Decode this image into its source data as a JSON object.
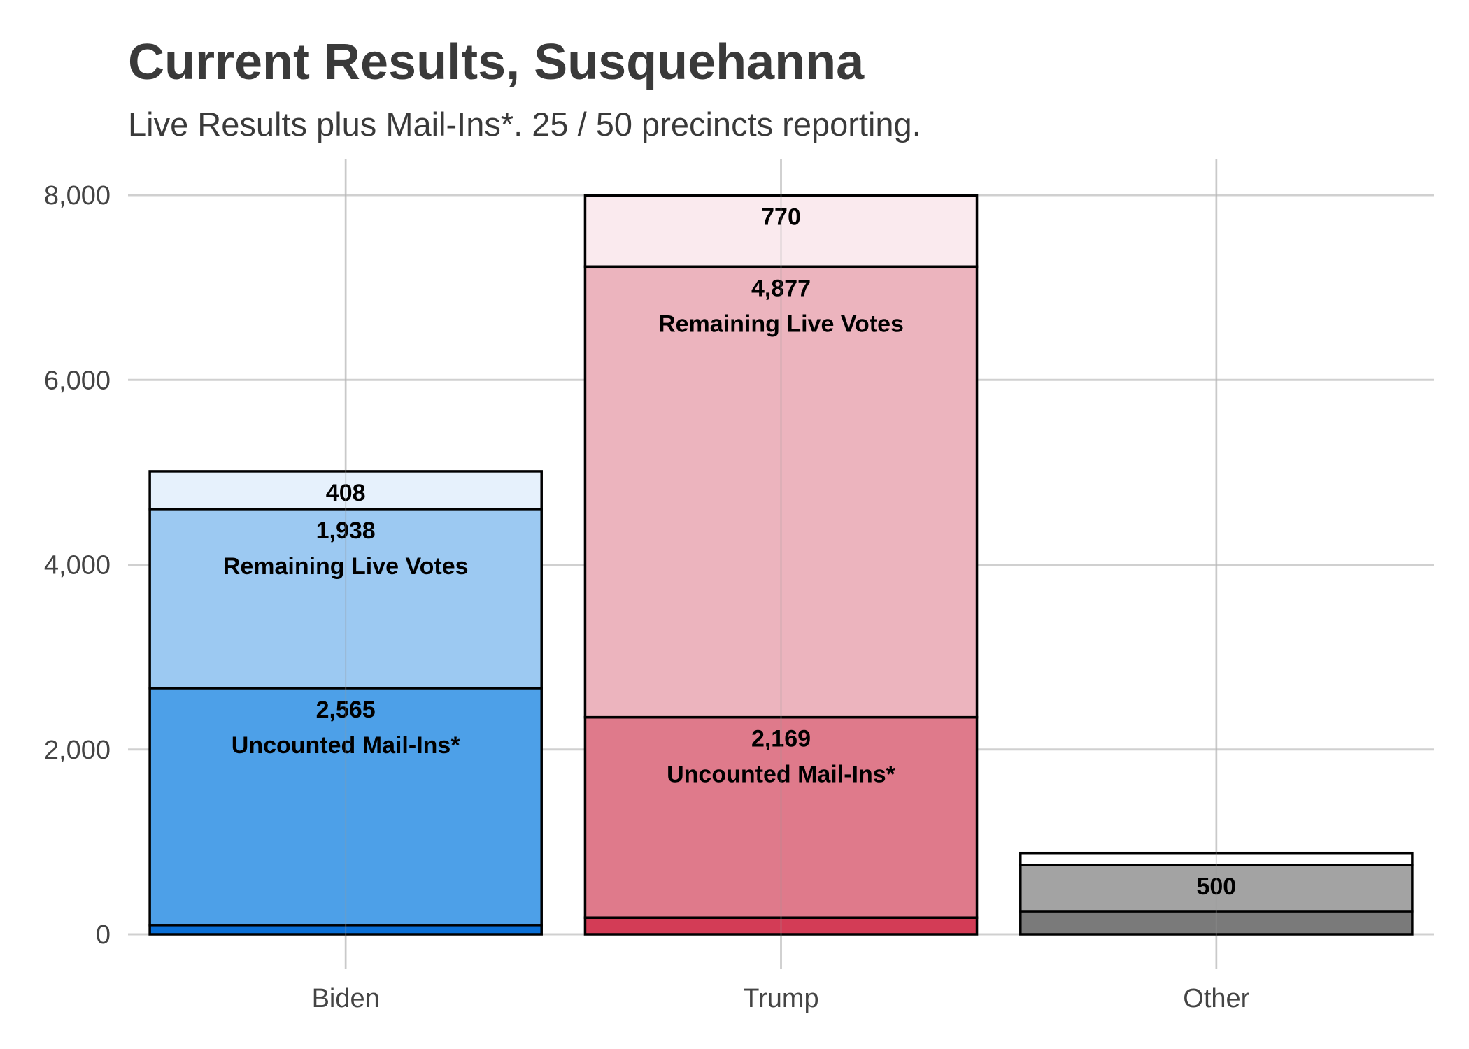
{
  "header": {
    "title": "Current Results, Susquehanna",
    "subtitle": "Live Results plus Mail-Ins*. 25 / 50 precincts reporting."
  },
  "chart_data": {
    "type": "bar",
    "stacked": true,
    "title": "Current Results, Susquehanna",
    "subtitle": "Live Results plus Mail-Ins*. 25 / 50 precincts reporting.",
    "xlabel": "",
    "ylabel": "",
    "categories": [
      "Biden",
      "Trump",
      "Other"
    ],
    "ylim": [
      0,
      8000
    ],
    "yticks": [
      0,
      2000,
      4000,
      6000,
      8000
    ],
    "ytick_labels": [
      "0",
      "2,000",
      "4,000",
      "6,000",
      "8,000"
    ],
    "grid": true,
    "bars": [
      {
        "category": "Biden",
        "segments": [
          {
            "value": 100,
            "color": "#0a6fd6",
            "label": ""
          },
          {
            "value": 2565,
            "color": "#4da0e8",
            "label": "2,565",
            "sublabel": "Uncounted Mail-Ins*"
          },
          {
            "value": 1938,
            "color": "#9cc9f2",
            "label": "1,938",
            "sublabel": "Remaining Live Votes"
          },
          {
            "value": 408,
            "color": "#e6f1fc",
            "label": "408"
          }
        ]
      },
      {
        "category": "Trump",
        "segments": [
          {
            "value": 180,
            "color": "#d33c56",
            "label": ""
          },
          {
            "value": 2169,
            "color": "#df7a8b",
            "label": "2,169",
            "sublabel": "Uncounted Mail-Ins*"
          },
          {
            "value": 4877,
            "color": "#ecb4be",
            "label": "4,877",
            "sublabel": "Remaining Live Votes"
          },
          {
            "value": 770,
            "color": "#faeaee",
            "label": "770"
          }
        ]
      },
      {
        "category": "Other",
        "segments": [
          {
            "value": 250,
            "color": "#7a7a7a",
            "label": ""
          },
          {
            "value": 500,
            "color": "#a3a3a3",
            "label": "500"
          },
          {
            "value": 130,
            "color": "#ffffff",
            "label": ""
          }
        ]
      }
    ]
  }
}
